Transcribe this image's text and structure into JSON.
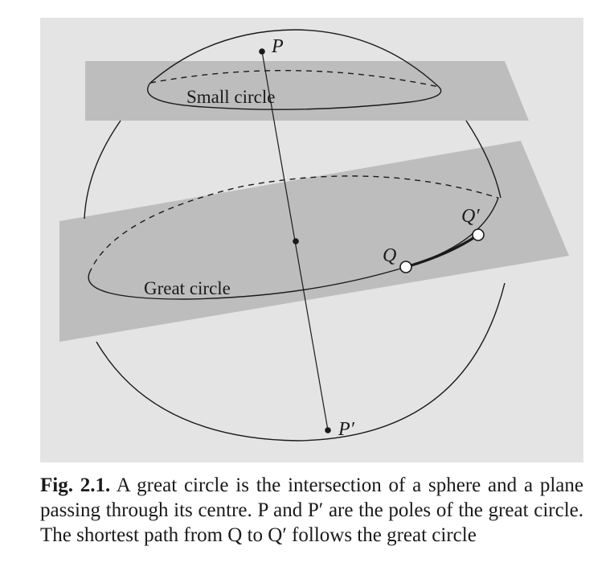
{
  "diagram": {
    "labels": {
      "pole_top": "P",
      "pole_bottom": "P′",
      "small_circle": "Small circle",
      "great_circle": "Great circle",
      "point_q": "Q",
      "point_q_prime": "Q′"
    },
    "colors": {
      "panel_background": "#e4e4e4",
      "plane_fill": "#bdbdbd",
      "stroke": "#1a1a1a"
    }
  },
  "caption": {
    "figure_label": "Fig. 2.1.",
    "text": "A great circle is the intersection of a sphere and a plane passing through its centre. P and P′ are the poles of the great circle. The shortest path from Q to Q′ follows the great circle"
  }
}
